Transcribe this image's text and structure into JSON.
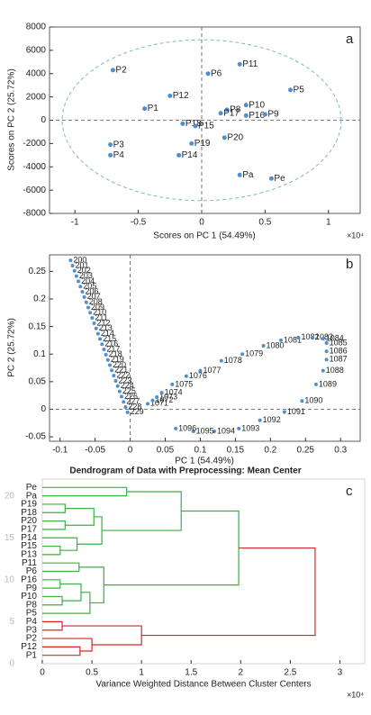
{
  "chart_data": [
    {
      "type": "scatter",
      "panel": "a",
      "xlabel": "Scores on PC 1 (54.49%)",
      "ylabel": "Scores on PC 2 (25.72%)",
      "x_scale_label": "×10⁴",
      "color": "#4f8fcf",
      "zero_lines": true,
      "labels": [
        "P2",
        "P12",
        "P1",
        "P3",
        "P4",
        "P18",
        "P15",
        "P19",
        "P14",
        "P6",
        "P11",
        "P8",
        "P17",
        "P10",
        "P16",
        "P9",
        "P5",
        "P20",
        "Pa",
        "Pe"
      ],
      "x": [
        -0.7,
        -0.25,
        -0.45,
        -0.72,
        -0.72,
        -0.15,
        -0.05,
        -0.08,
        -0.18,
        0.05,
        0.3,
        0.2,
        0.15,
        0.35,
        0.35,
        0.5,
        0.7,
        0.18,
        0.3,
        0.55
      ],
      "y": [
        4300,
        2100,
        1000,
        -2100,
        -3000,
        -300,
        -500,
        -2000,
        -3000,
        4000,
        4800,
        900,
        600,
        1300,
        400,
        500,
        2600,
        -1500,
        -4700,
        -5000
      ],
      "ellipse": {
        "center": [
          0,
          0
        ],
        "radii": [
          1.1,
          6900
        ],
        "color": "#7fb8c8"
      },
      "xlim": [
        -1.2,
        1.25
      ],
      "xticks": [
        -1,
        -0.5,
        0,
        0.5,
        1
      ],
      "ylim": [
        -8000,
        8000
      ],
      "yticks": [
        -8000,
        -6000,
        -4000,
        -2000,
        0,
        2000,
        4000,
        6000,
        8000
      ]
    },
    {
      "type": "scatter",
      "panel": "b",
      "xlabel": "PC 1 (54.49%)",
      "ylabel": "PC 2 (25.72%)",
      "color": "#4f8fcf",
      "zero_lines": true,
      "labels": [
        "200",
        "201",
        "202",
        "203",
        "204",
        "205",
        "206",
        "207",
        "208",
        "209",
        "210",
        "211",
        "212",
        "213",
        "214",
        "215",
        "216",
        "217",
        "218",
        "219",
        "220",
        "221",
        "222",
        "223",
        "224",
        "225",
        "226",
        "227",
        "228",
        "229",
        "1071",
        "1072",
        "1073",
        "1074",
        "1075",
        "1076",
        "1077",
        "1078",
        "1079",
        "1080",
        "1081",
        "1082",
        "1083",
        "1084",
        "1085",
        "1086",
        "1087",
        "1088",
        "1089",
        "1090",
        "1091",
        "1092",
        "1093",
        "1094",
        "1095",
        "1096"
      ],
      "x": [
        -0.085,
        -0.0822,
        -0.0794,
        -0.0766,
        -0.0738,
        -0.071,
        -0.0682,
        -0.0654,
        -0.0626,
        -0.0598,
        -0.057,
        -0.0542,
        -0.0514,
        -0.0486,
        -0.0458,
        -0.043,
        -0.0402,
        -0.0374,
        -0.0346,
        -0.0318,
        -0.029,
        -0.0262,
        -0.0234,
        -0.0206,
        -0.0178,
        -0.015,
        -0.0122,
        -0.0094,
        -0.0066,
        -0.0038,
        0.025,
        0.032,
        0.038,
        0.045,
        0.06,
        0.08,
        0.1,
        0.13,
        0.16,
        0.19,
        0.215,
        0.24,
        0.26,
        0.275,
        0.28,
        0.28,
        0.28,
        0.275,
        0.265,
        0.245,
        0.22,
        0.185,
        0.155,
        0.12,
        0.09,
        0.065
      ],
      "y": [
        0.27,
        0.2605,
        0.251,
        0.2415,
        0.232,
        0.2225,
        0.213,
        0.2035,
        0.194,
        0.1845,
        0.175,
        0.1655,
        0.156,
        0.1465,
        0.137,
        0.1275,
        0.118,
        0.1085,
        0.099,
        0.0895,
        0.08,
        0.0705,
        0.061,
        0.0515,
        0.042,
        0.0325,
        0.023,
        0.0135,
        0.004,
        -0.0055,
        0.01,
        0.016,
        0.022,
        0.03,
        0.045,
        0.06,
        0.07,
        0.088,
        0.1,
        0.115,
        0.125,
        0.13,
        0.13,
        0.128,
        0.12,
        0.105,
        0.09,
        0.07,
        0.045,
        0.015,
        -0.005,
        -0.02,
        -0.035,
        -0.04,
        -0.04,
        -0.035
      ],
      "xlim": [
        -0.115,
        0.328
      ],
      "xticks": [
        -0.1,
        -0.05,
        0,
        0.05,
        0.1,
        0.15,
        0.2,
        0.25,
        0.3
      ],
      "ylim": [
        -0.058,
        0.28
      ],
      "yticks": [
        -0.05,
        0,
        0.05,
        0.1,
        0.15,
        0.2,
        0.25
      ]
    },
    {
      "type": "dendrogram",
      "panel": "c",
      "title": "Dendrogram of Data with Preprocessing: Mean Center",
      "xlabel": "Variance Weighted Distance Between Cluster Centers",
      "x_scale_label": "×10⁴",
      "leaves": [
        "Pe",
        "Pa",
        "P19",
        "P18",
        "P20",
        "P17",
        "P14",
        "P15",
        "P13",
        "P11",
        "P6",
        "P16",
        "P9",
        "P10",
        "P8",
        "P5",
        "P4",
        "P3",
        "P2",
        "P12",
        "P1"
      ],
      "links": [
        {
          "children": [
            0,
            1
          ],
          "height": 0.85,
          "color": "#3cb043"
        },
        {
          "children": [
            2,
            3
          ],
          "height": 0.23,
          "color": "#3cb043"
        },
        {
          "children": [
            4,
            5
          ],
          "height": 0.23,
          "color": "#3cb043"
        },
        {
          "children": [
            22,
            23
          ],
          "height": 0.52,
          "color": "#3cb043"
        },
        {
          "children": [
            7,
            8
          ],
          "height": 0.18,
          "color": "#3cb043"
        },
        {
          "children": [
            6,
            25
          ],
          "height": 0.35,
          "color": "#3cb043"
        },
        {
          "children": [
            24,
            26
          ],
          "height": 0.6,
          "color": "#3cb043"
        },
        {
          "children": [
            21,
            27
          ],
          "height": 1.4,
          "color": "#3cb043"
        },
        {
          "children": [
            11,
            12
          ],
          "height": 0.18,
          "color": "#3cb043"
        },
        {
          "children": [
            13,
            14
          ],
          "height": 0.2,
          "color": "#3cb043"
        },
        {
          "children": [
            29,
            30
          ],
          "height": 0.39,
          "color": "#3cb043"
        },
        {
          "children": [
            31,
            15
          ],
          "height": 0.48,
          "color": "#3cb043"
        },
        {
          "children": [
            9,
            10
          ],
          "height": 0.37,
          "color": "#3cb043"
        },
        {
          "children": [
            33,
            32
          ],
          "height": 0.62,
          "color": "#3cb043"
        },
        {
          "children": [
            28,
            34
          ],
          "height": 1.98,
          "color": "#3cb043"
        },
        {
          "children": [
            16,
            17
          ],
          "height": 0.2,
          "color": "#d62728"
        },
        {
          "children": [
            19,
            20
          ],
          "height": 0.38,
          "color": "#d62728"
        },
        {
          "children": [
            18,
            37
          ],
          "height": 0.5,
          "color": "#d62728"
        },
        {
          "children": [
            36,
            38
          ],
          "height": 1.0,
          "color": "#d62728"
        },
        {
          "children": [
            35,
            39
          ],
          "height": 2.75,
          "color": "#d62728"
        }
      ],
      "xlim": [
        0,
        3.25
      ],
      "xticks": [
        0,
        0.5,
        1,
        1.5,
        2,
        2.5,
        3
      ],
      "ylim": [
        0,
        22
      ],
      "yticks": [
        0,
        5,
        10,
        15,
        20
      ]
    }
  ]
}
